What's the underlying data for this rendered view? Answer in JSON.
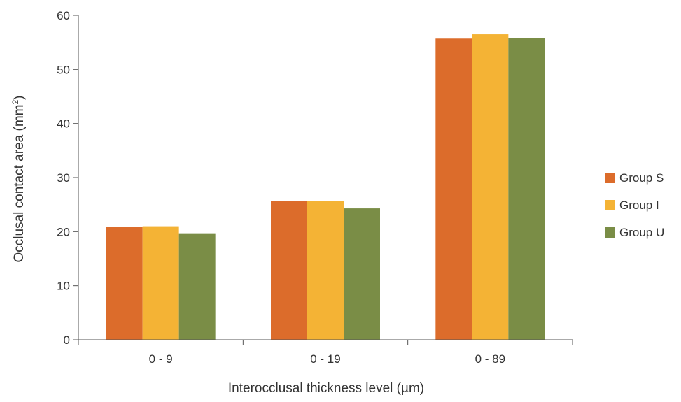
{
  "chart_data": {
    "type": "bar",
    "categories": [
      "0 - 9",
      "0 - 19",
      "0 - 89"
    ],
    "series": [
      {
        "name": "Group S",
        "color": "#dc6c2b",
        "values": [
          20.9,
          25.7,
          55.7
        ]
      },
      {
        "name": "Group I",
        "color": "#f4b335",
        "values": [
          21.0,
          25.7,
          56.5
        ]
      },
      {
        "name": "Group U",
        "color": "#7a8d46",
        "values": [
          19.7,
          24.3,
          55.8
        ]
      }
    ],
    "yticks": [
      "0",
      "10",
      "20",
      "30",
      "40",
      "50",
      "60"
    ],
    "ylim": [
      0,
      60
    ],
    "ylabel": "Occlusal contact area (mm",
    "ylabel_sup": "2",
    "ylabel_suffix": ")",
    "xlabel": "Interocclusal thickness level (µm)",
    "grid": false,
    "legend_position": "right"
  }
}
